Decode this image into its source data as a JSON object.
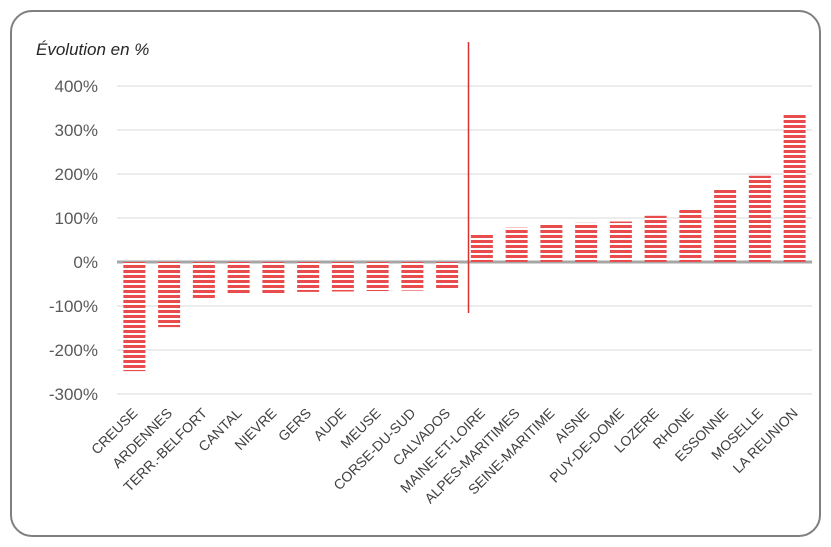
{
  "chart_data": {
    "type": "bar",
    "title": "",
    "xlabel": "",
    "ylabel": "Évolution en %",
    "ylim": [
      -300,
      400
    ],
    "yticks": [
      400,
      300,
      200,
      100,
      0,
      -100,
      -200,
      -300
    ],
    "ytick_labels": [
      "400%",
      "300%",
      "200%",
      "100%",
      "0%",
      "-100%",
      "-200%",
      "-300%"
    ],
    "grid": true,
    "categories": [
      "CREUSE",
      "ARDENNES",
      "TERR.-BELFORT",
      "CANTAL",
      "NIEVRE",
      "GERS",
      "AUDE",
      "MEUSE",
      "CORSE-DU-SUD",
      "CALVADOS",
      "MAINE-ET-LOIRE",
      "ALPES-MARITIMES",
      "SEINE-MARITIME",
      "AISNE",
      "PUY-DE-DOME",
      "LOZERE",
      "RHONE",
      "ESSONNE",
      "MOSELLE",
      "LA REUNION"
    ],
    "values": [
      -248,
      -148,
      -82,
      -75,
      -73,
      -68,
      -67,
      -66,
      -65,
      -63,
      65,
      78,
      86,
      89,
      92,
      105,
      122,
      166,
      196,
      334
    ],
    "divider_after_category": "CALVADOS",
    "colors": {
      "bar": "#e84c4c",
      "bar_stripe": "#ffffff",
      "divider": "#d93030",
      "grid": "#d9d9d9",
      "zero_line": "#a6a6a6"
    }
  }
}
